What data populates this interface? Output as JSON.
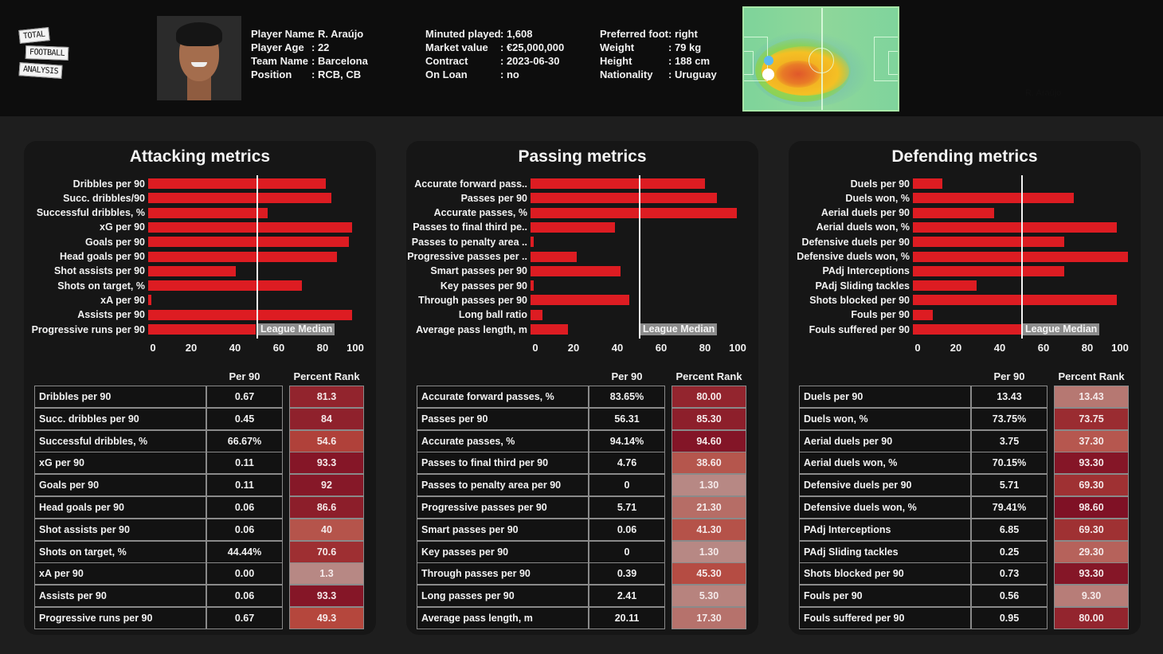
{
  "logo": {
    "line1": "TOTAL",
    "line2": "FOOTBALL",
    "line3": "ANALYSIS"
  },
  "player": {
    "photo_icon": "player-photo",
    "col1": [
      {
        "key": "Player Name",
        "value": ": R. Araújo"
      },
      {
        "key": "Player Age",
        "value": ": 22"
      },
      {
        "key": "Team Name",
        "value": ": Barcelona"
      },
      {
        "key": "Position",
        "value": ": RCB, CB"
      }
    ],
    "col2": [
      {
        "key": "Minuted played",
        "value": ": 1,608"
      },
      {
        "key": "Market value",
        "value": ": €25,000,000"
      },
      {
        "key": "Contract",
        "value": ": 2023-06-30"
      },
      {
        "key": "On Loan",
        "value": ": no"
      }
    ],
    "col3": [
      {
        "key": "Preferred foot",
        "value": ": right"
      },
      {
        "key": "Weight",
        "value": ": 79 kg"
      },
      {
        "key": "Height",
        "value": ": 188 cm"
      },
      {
        "key": "Nationality",
        "value": ": Uruguay"
      }
    ],
    "heatmap_label": "R. Araújo"
  },
  "colors": {
    "bar": "#dd1c22",
    "median_line": "#f2f2f2",
    "median_label_bg": "#8c8c8c",
    "rank_low": "#b78a86",
    "rank_mid": "#b5463c",
    "rank_high": "#7d0f24"
  },
  "chart_data": [
    {
      "type": "bar",
      "orientation": "horizontal",
      "title": "Attacking metrics",
      "categories": [
        "Dribbles per 90",
        "Succ. dribbles/90",
        "Successful dribbles, %",
        "xG per 90",
        "Goals per 90",
        "Head goals per 90",
        "Shot assists per 90",
        "Shots on target, %",
        "xA per 90",
        "Assists per 90",
        "Progressive runs per 90"
      ],
      "values": [
        81.3,
        84,
        54.6,
        93.3,
        92,
        86.6,
        40,
        70.6,
        1.3,
        93.3,
        49.3
      ],
      "xlim": [
        0,
        100
      ],
      "xticks": [
        "0",
        "20",
        "40",
        "60",
        "80",
        "100"
      ],
      "median": 50,
      "median_label": "League Median",
      "grid": false
    },
    {
      "type": "bar",
      "orientation": "horizontal",
      "title": "Passing metrics",
      "categories": [
        "Accurate forward pass..",
        "Passes per 90",
        "Accurate passes, %",
        "Passes to final third pe..",
        "Passes to penalty area ..",
        "Progressive passes per ..",
        "Smart passes per 90",
        "Key passes per 90",
        "Through passes per 90",
        "Long ball ratio",
        "Average pass length, m"
      ],
      "values": [
        80.0,
        85.3,
        94.6,
        38.6,
        1.3,
        21.3,
        41.3,
        1.3,
        45.3,
        5.3,
        17.3
      ],
      "xlim": [
        0,
        100
      ],
      "xticks": [
        "0",
        "20",
        "40",
        "60",
        "80",
        "100"
      ],
      "median": 50,
      "median_label": "League Median",
      "grid": false
    },
    {
      "type": "bar",
      "orientation": "horizontal",
      "title": "Defending metrics",
      "categories": [
        "Duels per 90",
        "Duels won, %",
        "Aerial duels per 90",
        "Aerial duels won, %",
        "Defensive duels per 90",
        "Defensive duels won, %",
        "PAdj Interceptions",
        "PAdj Sliding tackles",
        "Shots blocked per 90",
        "Fouls per 90",
        "Fouls suffered per 90"
      ],
      "values": [
        13.43,
        73.75,
        37.3,
        93.3,
        69.3,
        98.6,
        69.3,
        29.3,
        93.3,
        9.3,
        80.0
      ],
      "xlim": [
        0,
        100
      ],
      "xticks": [
        "0",
        "20",
        "40",
        "60",
        "80",
        "100"
      ],
      "median": 50,
      "median_label": "League Median",
      "grid": false
    }
  ],
  "tables": [
    {
      "col_per90": "Per 90",
      "col_rank": "Percent Rank",
      "rows": [
        {
          "name": "Dribbles per 90",
          "per90": "0.67",
          "rank": "81.3"
        },
        {
          "name": "Succ. dribbles per 90",
          "per90": "0.45",
          "rank": "84"
        },
        {
          "name": "Successful dribbles, %",
          "per90": "66.67%",
          "rank": "54.6"
        },
        {
          "name": "xG per 90",
          "per90": "0.11",
          "rank": "93.3"
        },
        {
          "name": "Goals per 90",
          "per90": "0.11",
          "rank": "92"
        },
        {
          "name": "Head goals per 90",
          "per90": "0.06",
          "rank": "86.6"
        },
        {
          "name": "Shot assists per 90",
          "per90": "0.06",
          "rank": "40"
        },
        {
          "name": "Shots on target, %",
          "per90": "44.44%",
          "rank": "70.6"
        },
        {
          "name": "xA per 90",
          "per90": "0.00",
          "rank": "1.3"
        },
        {
          "name": "Assists per 90",
          "per90": "0.06",
          "rank": "93.3"
        },
        {
          "name": "Progressive runs per 90",
          "per90": "0.67",
          "rank": "49.3"
        }
      ]
    },
    {
      "col_per90": "Per 90",
      "col_rank": "Percent Rank",
      "rows": [
        {
          "name": "Accurate forward passes, %",
          "per90": "83.65%",
          "rank": "80.00"
        },
        {
          "name": "Passes per 90",
          "per90": "56.31",
          "rank": "85.30"
        },
        {
          "name": "Accurate passes, %",
          "per90": "94.14%",
          "rank": "94.60"
        },
        {
          "name": "Passes to final third per 90",
          "per90": "4.76",
          "rank": "38.60"
        },
        {
          "name": "Passes to penalty area per 90",
          "per90": "0",
          "rank": "1.30"
        },
        {
          "name": "Progressive passes per 90",
          "per90": "5.71",
          "rank": "21.30"
        },
        {
          "name": "Smart passes per 90",
          "per90": "0.06",
          "rank": "41.30"
        },
        {
          "name": "Key passes per 90",
          "per90": "0",
          "rank": "1.30"
        },
        {
          "name": "Through passes per 90",
          "per90": "0.39",
          "rank": "45.30"
        },
        {
          "name": "Long passes per 90",
          "per90": "2.41",
          "rank": "5.30"
        },
        {
          "name": "Average pass length, m",
          "per90": "20.11",
          "rank": "17.30"
        }
      ]
    },
    {
      "col_per90": "Per 90",
      "col_rank": "Percent Rank",
      "rows": [
        {
          "name": "Duels per 90",
          "per90": "13.43",
          "rank": "13.43"
        },
        {
          "name": "Duels won, %",
          "per90": "73.75%",
          "rank": "73.75"
        },
        {
          "name": "Aerial duels per 90",
          "per90": "3.75",
          "rank": "37.30"
        },
        {
          "name": "Aerial duels won, %",
          "per90": "70.15%",
          "rank": "93.30"
        },
        {
          "name": "Defensive duels per 90",
          "per90": "5.71",
          "rank": "69.30"
        },
        {
          "name": "Defensive duels won, %",
          "per90": "79.41%",
          "rank": "98.60"
        },
        {
          "name": "PAdj Interceptions",
          "per90": "6.85",
          "rank": "69.30"
        },
        {
          "name": "PAdj Sliding tackles",
          "per90": "0.25",
          "rank": "29.30"
        },
        {
          "name": "Shots blocked per 90",
          "per90": "0.73",
          "rank": "93.30"
        },
        {
          "name": "Fouls per 90",
          "per90": "0.56",
          "rank": "9.30"
        },
        {
          "name": "Fouls suffered per 90",
          "per90": "0.95",
          "rank": "80.00"
        }
      ]
    }
  ]
}
